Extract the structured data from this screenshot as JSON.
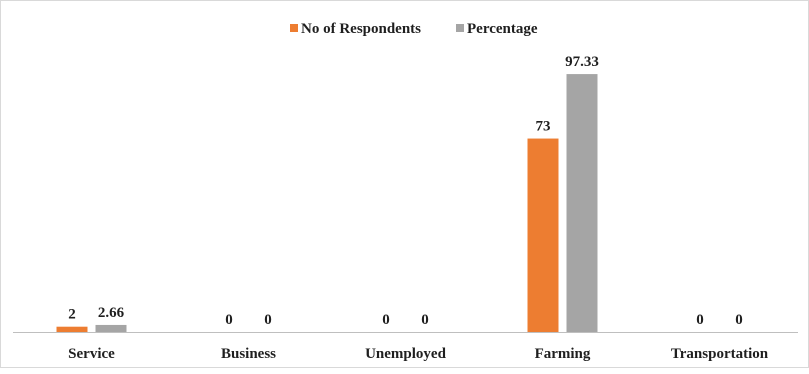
{
  "chart_data": {
    "type": "bar",
    "categories": [
      "Service",
      "Business",
      "Unemployed",
      "Farming",
      "Transportation"
    ],
    "series": [
      {
        "name": "No of Respondents",
        "values": [
          2,
          0,
          0,
          73,
          0
        ],
        "labels": [
          "2",
          "0",
          "0",
          "73",
          "0"
        ],
        "color": "#ed7d31"
      },
      {
        "name": "Percentage",
        "values": [
          2.66,
          0,
          0,
          97.33,
          0
        ],
        "labels": [
          "2.66",
          "0",
          "0",
          "97.33",
          "0"
        ],
        "color": "#a5a5a5"
      }
    ],
    "title": "",
    "xlabel": "",
    "ylabel": "",
    "ylim": [
      0,
      100
    ],
    "grid": false,
    "legend_position": "top-center"
  }
}
